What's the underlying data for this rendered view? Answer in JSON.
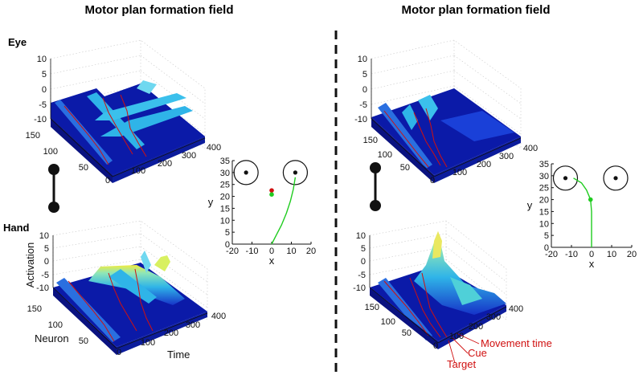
{
  "titles": {
    "left": "Motor plan formation field",
    "right": "Motor plan formation field"
  },
  "rows": {
    "eye": "Eye",
    "hand": "Hand"
  },
  "colors": {
    "surface_low": "#0b1aa8",
    "surface_mid": "#2fb4e8",
    "surface_high": "#f2ec3c",
    "event_lines": "#d01010",
    "trajectory": "#20cc20",
    "target_dot": "#d01010",
    "divider": "#111111"
  },
  "annotations": {
    "movement_time": "Movement time",
    "cue": "Cue",
    "target": "Target"
  },
  "chart_data": [
    {
      "type": "surface",
      "panel": "left-eye",
      "z_ticks": [
        "10",
        "5",
        "0",
        "-5",
        "-10"
      ],
      "neuron_ticks": [
        "150",
        "100",
        "50"
      ],
      "time_ticks": [
        "0",
        "100",
        "200",
        "300",
        "400"
      ],
      "zlim": [
        -10,
        10
      ]
    },
    {
      "type": "surface",
      "panel": "left-hand",
      "zlabel": "Activation",
      "xlabel": "Time",
      "ylabel": "Neuron",
      "z_ticks": [
        "10",
        "5",
        "0",
        "-5",
        "-10"
      ],
      "neuron_ticks": [
        "150",
        "100",
        "50"
      ],
      "time_ticks": [
        "0",
        "100",
        "200",
        "300",
        "400"
      ],
      "zlim": [
        -10,
        10
      ]
    },
    {
      "type": "surface",
      "panel": "right-eye",
      "z_ticks": [
        "10",
        "5",
        "0",
        "-5",
        "-10"
      ],
      "neuron_ticks": [
        "150",
        "100",
        "50"
      ],
      "time_ticks": [
        "0",
        "100",
        "200",
        "300",
        "400"
      ],
      "zlim": [
        -10,
        10
      ]
    },
    {
      "type": "surface",
      "panel": "right-hand",
      "z_ticks": [
        "10",
        "5",
        "0",
        "-5",
        "-10"
      ],
      "neuron_ticks": [
        "150",
        "100",
        "50"
      ],
      "time_ticks": [
        "0",
        "100",
        "200",
        "300",
        "400"
      ],
      "zlim": [
        -10,
        10
      ]
    },
    {
      "type": "line",
      "panel": "left-trajectory",
      "xlabel": "x",
      "ylabel": "y",
      "xlim": [
        -20,
        20
      ],
      "ylim": [
        0,
        35
      ],
      "x_ticks": [
        "-20",
        "-10",
        "0",
        "10",
        "20"
      ],
      "y_ticks": [
        "0",
        "5",
        "10",
        "15",
        "20",
        "25",
        "30",
        "35"
      ],
      "targets": [
        {
          "x": -13,
          "y": 30
        },
        {
          "x": 12,
          "y": 30
        }
      ],
      "trajectory": [
        {
          "x": 0,
          "y": 0
        },
        {
          "x": 2.5,
          "y": 4
        },
        {
          "x": 5,
          "y": 8
        },
        {
          "x": 7.5,
          "y": 13
        },
        {
          "x": 9.5,
          "y": 18
        },
        {
          "x": 11,
          "y": 23
        },
        {
          "x": 12,
          "y": 28
        }
      ],
      "markers": [
        {
          "x": 0,
          "y": 22.5,
          "color": "red"
        },
        {
          "x": 0,
          "y": 20.8,
          "color": "green"
        }
      ]
    },
    {
      "type": "line",
      "panel": "right-trajectory",
      "xlabel": "x",
      "ylabel": "y",
      "xlim": [
        -20,
        20
      ],
      "ylim": [
        0,
        35
      ],
      "x_ticks": [
        "-20",
        "-10",
        "0",
        "10",
        "20"
      ],
      "y_ticks": [
        "0",
        "5",
        "10",
        "15",
        "20",
        "25",
        "30",
        "35"
      ],
      "targets": [
        {
          "x": -13,
          "y": 29
        },
        {
          "x": 12,
          "y": 29
        }
      ],
      "trajectory": [
        {
          "x": -9,
          "y": 29
        },
        {
          "x": -5,
          "y": 27
        },
        {
          "x": -2.5,
          "y": 24
        },
        {
          "x": -0.5,
          "y": 20
        },
        {
          "x": 0,
          "y": 15
        },
        {
          "x": 0,
          "y": 8
        },
        {
          "x": 0,
          "y": 0
        }
      ],
      "markers": [
        {
          "x": -0.5,
          "y": 20,
          "color": "green"
        }
      ]
    }
  ]
}
